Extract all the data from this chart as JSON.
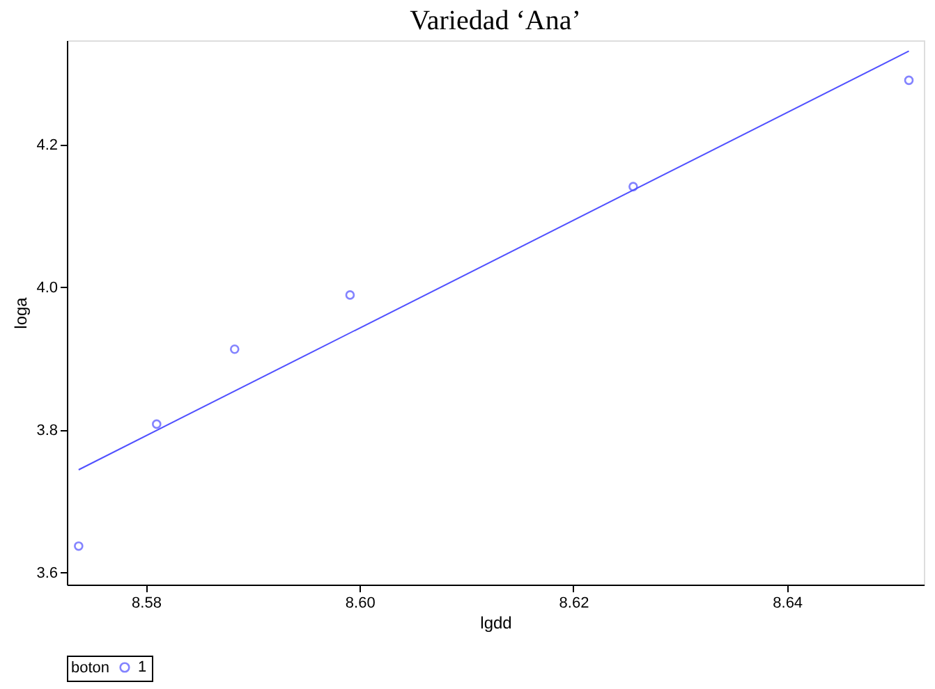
{
  "chart_data": {
    "type": "scatter",
    "title": "Variedad ‘Ana’",
    "xlabel": "lgdd",
    "ylabel": "loga",
    "legend_title": "boton",
    "xlim": [
      8.5726,
      8.6528
    ],
    "ylim": [
      3.583,
      4.346
    ],
    "xticks": [
      {
        "value": 8.58,
        "label": "8.58"
      },
      {
        "value": 8.6,
        "label": "8.60"
      },
      {
        "value": 8.62,
        "label": "8.62"
      },
      {
        "value": 8.64,
        "label": "8.64"
      }
    ],
    "yticks": [
      {
        "value": 3.6,
        "label": "3.6"
      },
      {
        "value": 3.8,
        "label": "3.8"
      },
      {
        "value": 4.0,
        "label": "4.0"
      },
      {
        "value": 4.2,
        "label": "4.2"
      }
    ],
    "series": [
      {
        "name": "1",
        "marker": "circle",
        "color": "#5050ff",
        "x": [
          8.5737,
          8.581,
          8.5883,
          8.5991,
          8.6256,
          8.6514
        ],
        "values": [
          3.637,
          3.808,
          3.913,
          3.989,
          4.141,
          4.29
        ]
      },
      {
        "type": "line",
        "color": "#5050ff",
        "line_style": "solid",
        "x": [
          8.5737,
          8.6514
        ],
        "values": [
          3.744,
          4.331
        ]
      }
    ],
    "grid": false,
    "legend": "bottom"
  }
}
